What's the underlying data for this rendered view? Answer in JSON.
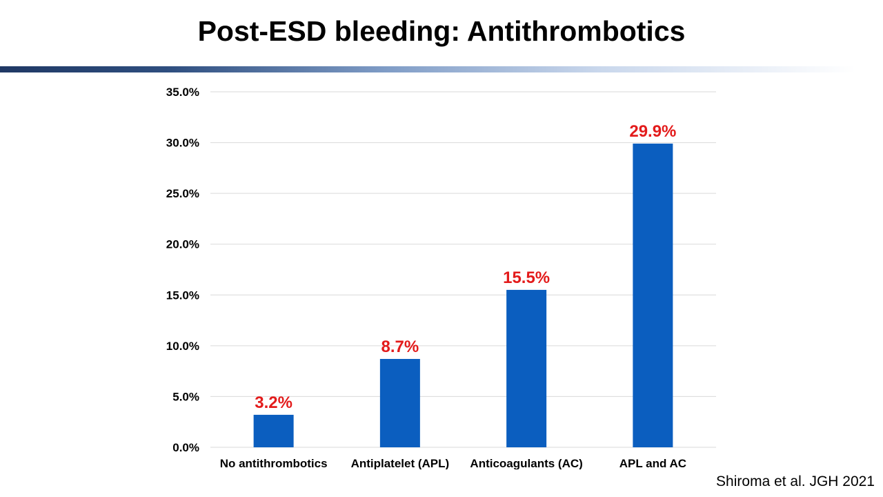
{
  "slide": {
    "title": "Post-ESD bleeding: Antithrombotics",
    "citation": "Shiroma et al. JGH 2021"
  },
  "colors": {
    "bar": "#0b5ebf",
    "data_label": "#e31b1b",
    "gridline": "#d9d9d9",
    "title_rule": "#1f3864"
  },
  "chart_data": {
    "type": "bar",
    "title": "",
    "xlabel": "",
    "ylabel": "",
    "categories": [
      "No antithrombotics",
      "Antiplatelet (APL)",
      "Anticoagulants (AC)",
      "APL and AC"
    ],
    "values": [
      3.2,
      8.7,
      15.5,
      29.9
    ],
    "data_labels": [
      "3.2%",
      "8.7%",
      "15.5%",
      "29.9%"
    ],
    "ylim": [
      0,
      35
    ],
    "yticks": [
      0,
      5,
      10,
      15,
      20,
      25,
      30,
      35
    ],
    "ytick_labels": [
      "0.0%",
      "5.0%",
      "10.0%",
      "15.0%",
      "20.0%",
      "25.0%",
      "30.0%",
      "35.0%"
    ],
    "grid": true,
    "legend": "none"
  }
}
